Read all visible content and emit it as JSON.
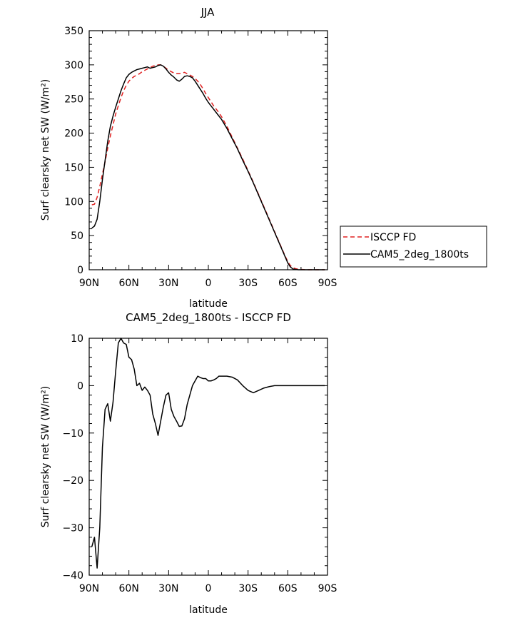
{
  "chart_data": [
    {
      "type": "line",
      "title": "JJA",
      "xlabel": "latitude",
      "ylabel": "Surf clearsky net SW (W/m²)",
      "xlim": [
        90,
        -90
      ],
      "ylim": [
        0,
        350
      ],
      "x_ticks": [
        90,
        60,
        30,
        0,
        -30,
        -60,
        -90
      ],
      "x_tick_labels": [
        "90N",
        "60N",
        "30N",
        "0",
        "30S",
        "60S",
        "90S"
      ],
      "y_ticks": [
        0,
        50,
        100,
        150,
        200,
        250,
        300,
        350
      ],
      "y_tick_labels": [
        "0",
        "50",
        "100",
        "150",
        "200",
        "250",
        "300",
        "350"
      ],
      "legend_position": "right",
      "series": [
        {
          "name": "ISCCP FD",
          "color": "#e02020",
          "dash": "dashed",
          "x": [
            88,
            86,
            84,
            82,
            80,
            78,
            76,
            74,
            72,
            70,
            68,
            66,
            64,
            62,
            60,
            58,
            56,
            54,
            52,
            50,
            48,
            46,
            44,
            42,
            40,
            38,
            36,
            34,
            32,
            30,
            28,
            26,
            24,
            22,
            20,
            18,
            16,
            14,
            12,
            10,
            8,
            6,
            4,
            2,
            0,
            -2,
            -4,
            -6,
            -8,
            -10,
            -14,
            -18,
            -22,
            -26,
            -30,
            -34,
            -38,
            -42,
            -46,
            -50,
            -54,
            -58,
            -60,
            -62,
            -64,
            -66,
            -68,
            -70,
            -74,
            -78,
            -82,
            -86,
            -88
          ],
          "y": [
            95,
            96,
            106,
            122,
            140,
            158,
            178,
            196,
            212,
            228,
            240,
            252,
            262,
            270,
            276,
            280,
            283,
            285,
            287,
            290,
            292,
            294,
            296,
            298,
            299,
            300,
            300,
            298,
            295,
            292,
            290,
            288,
            287,
            287,
            288,
            289,
            287,
            285,
            283,
            280,
            276,
            271,
            265,
            258,
            252,
            246,
            240,
            235,
            230,
            224,
            210,
            194,
            178,
            162,
            145,
            128,
            110,
            92,
            74,
            56,
            38,
            20,
            12,
            6,
            3,
            1.5,
            1,
            0.5,
            0,
            0,
            0,
            0,
            0
          ]
        },
        {
          "name": "CAM5_2deg_1800ts",
          "color": "#000000",
          "dash": "solid",
          "x": [
            88,
            86,
            84,
            82,
            80,
            78,
            76,
            74,
            72,
            70,
            68,
            66,
            64,
            62,
            60,
            58,
            56,
            54,
            52,
            50,
            48,
            46,
            44,
            42,
            40,
            38,
            36,
            34,
            32,
            30,
            28,
            26,
            24,
            22,
            20,
            18,
            16,
            14,
            12,
            10,
            8,
            6,
            4,
            2,
            0,
            -2,
            -4,
            -6,
            -8,
            -10,
            -14,
            -18,
            -22,
            -26,
            -30,
            -34,
            -38,
            -42,
            -46,
            -50,
            -54,
            -58,
            -60,
            -62,
            -64,
            -66,
            -68,
            -70,
            -74,
            -78,
            -82,
            -86,
            -88
          ],
          "y": [
            61,
            64,
            74,
            100,
            132,
            160,
            188,
            210,
            225,
            238,
            250,
            262,
            272,
            281,
            286,
            289,
            291,
            293,
            294,
            295,
            296,
            297,
            295,
            296,
            297,
            299,
            300,
            298,
            294,
            289,
            285,
            282,
            278,
            276,
            279,
            283,
            284,
            283,
            281,
            276,
            270,
            264,
            258,
            251,
            245,
            240,
            235,
            230,
            225,
            220,
            207,
            192,
            177,
            160,
            144,
            127,
            109,
            91,
            73,
            55,
            37,
            19,
            10,
            4,
            1,
            0.5,
            0,
            0,
            0,
            0,
            0,
            0,
            0
          ]
        }
      ]
    },
    {
      "type": "line",
      "title": "CAM5_2deg_1800ts - ISCCP FD",
      "xlabel": "latitude",
      "ylabel": "Surf clearsky net SW (W/m²)",
      "xlim": [
        90,
        -90
      ],
      "ylim": [
        -40,
        10
      ],
      "x_ticks": [
        90,
        60,
        30,
        0,
        -30,
        -60,
        -90
      ],
      "x_tick_labels": [
        "90N",
        "60N",
        "30N",
        "0",
        "30S",
        "60S",
        "90S"
      ],
      "y_ticks": [
        -40,
        -30,
        -20,
        -10,
        0,
        10
      ],
      "y_tick_labels": [
        "−40",
        "−30",
        "−20",
        "−10",
        "0",
        "10"
      ],
      "series": [
        {
          "color": "#000000",
          "dash": "solid",
          "x": [
            88,
            86,
            84,
            82,
            80,
            78,
            76,
            74,
            72,
            70,
            68,
            66,
            64,
            62,
            60,
            58,
            56,
            54,
            52,
            50,
            48,
            46,
            44,
            42,
            40,
            38,
            36,
            34,
            32,
            30,
            28,
            26,
            24,
            22,
            20,
            18,
            16,
            14,
            12,
            10,
            8,
            6,
            4,
            2,
            0,
            -2,
            -4,
            -6,
            -8,
            -10,
            -14,
            -18,
            -22,
            -26,
            -30,
            -34,
            -38,
            -42,
            -46,
            -50,
            -54,
            -58,
            -60,
            -62,
            -64,
            -66,
            -68,
            -70,
            -74,
            -78,
            -82,
            -86,
            -88
          ],
          "y": [
            -34,
            -32,
            -38.5,
            -30,
            -13,
            -5,
            -3.8,
            -7.5,
            -3.5,
            3,
            9,
            10,
            9,
            8.7,
            6,
            5.5,
            3.5,
            0,
            0.5,
            -1,
            -0.3,
            -1,
            -2,
            -6,
            -8,
            -10.5,
            -7.5,
            -4.5,
            -2,
            -1.5,
            -5,
            -6.5,
            -7.5,
            -8.6,
            -8.5,
            -7,
            -4,
            -2,
            0,
            1,
            2,
            1.7,
            1.5,
            1.5,
            1,
            1,
            1.2,
            1.5,
            2,
            2,
            2,
            1.8,
            1.2,
            0,
            -1,
            -1.5,
            -1,
            -0.5,
            -0.2,
            0,
            0,
            0,
            0,
            0,
            0,
            0,
            0,
            0,
            0,
            0,
            0,
            0,
            0
          ]
        }
      ]
    }
  ]
}
